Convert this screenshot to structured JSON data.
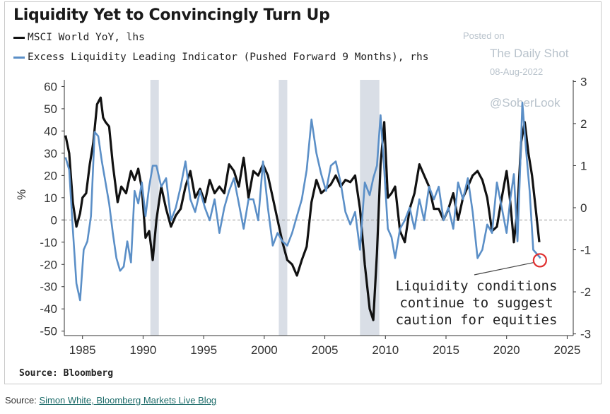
{
  "title": "Liquidity Yet to Convincingly Turn Up",
  "watermark": {
    "posted_on": "Posted on",
    "site": "The Daily Shot",
    "date": "08-Aug-2022",
    "handle": "@SoberLook"
  },
  "chart_source": "Source: Bloomberg",
  "page_source": {
    "prefix": "Source:",
    "link_text": "Simon White, Bloomberg Markets Live Blog"
  },
  "colors": {
    "msci": "#111111",
    "liquidity": "#5b8fc7",
    "recession": "#d9dee6",
    "zero_line": "#999999",
    "marker": "#e03030"
  },
  "chart_data": {
    "type": "line",
    "ylabel": "%",
    "grid": false,
    "legend_placement": "top-left",
    "x_ticks": [
      "1985",
      "1990",
      "1995",
      "2000",
      "2005",
      "2010",
      "2015",
      "2020",
      "2025"
    ],
    "x_tick_values": [
      1985,
      1990,
      1995,
      2000,
      2005,
      2010,
      2015,
      2020,
      2025
    ],
    "xlim": [
      1983.5,
      2025.5
    ],
    "left_axis": {
      "ylim": [
        -52,
        63
      ],
      "ticks": [
        "60",
        "50",
        "40",
        "30",
        "20",
        "10",
        "0",
        "-10",
        "-20",
        "-30",
        "-40",
        "-50"
      ],
      "tick_values": [
        60,
        50,
        40,
        30,
        20,
        10,
        0,
        -10,
        -20,
        -30,
        -40,
        -50
      ]
    },
    "right_axis": {
      "ylim": [
        -3.04,
        3.04
      ],
      "ticks": [
        "3",
        "2",
        "1",
        "0",
        "-1",
        "-2",
        "-3"
      ],
      "tick_values": [
        3,
        2,
        1,
        0,
        -1,
        -2,
        -3
      ]
    },
    "recession_bands": [
      [
        1990.6,
        1991.3
      ],
      [
        2001.2,
        2001.9
      ],
      [
        2007.9,
        2009.5
      ]
    ],
    "annotation": {
      "lines": [
        "Liquidity conditions",
        "continue to suggest",
        "caution for equities"
      ],
      "target": {
        "x": 2022.75,
        "y": -1.25,
        "axis": "right"
      }
    },
    "series": [
      {
        "name": "MSCI World YoY, lhs",
        "axis": "left",
        "x": [
          1983.6,
          1983.9,
          1984.2,
          1984.5,
          1984.8,
          1985.0,
          1985.3,
          1985.6,
          1985.9,
          1986.2,
          1986.5,
          1986.7,
          1986.9,
          1987.2,
          1987.5,
          1987.9,
          1988.2,
          1988.6,
          1989.0,
          1989.3,
          1989.6,
          1989.9,
          1990.2,
          1990.5,
          1990.8,
          1991.1,
          1991.5,
          1991.9,
          1992.3,
          1992.7,
          1993.1,
          1993.5,
          1993.9,
          1994.3,
          1994.7,
          1995.1,
          1995.5,
          1995.9,
          1996.3,
          1996.7,
          1997.1,
          1997.5,
          1997.9,
          1998.3,
          1998.7,
          1999.1,
          1999.5,
          1999.9,
          2000.3,
          2000.7,
          2001.1,
          2001.5,
          2001.9,
          2002.3,
          2002.7,
          2003.1,
          2003.5,
          2003.9,
          2004.3,
          2004.7,
          2005.1,
          2005.5,
          2005.9,
          2006.3,
          2006.7,
          2007.1,
          2007.5,
          2007.9,
          2008.3,
          2008.7,
          2009.0,
          2009.3,
          2009.6,
          2009.9,
          2010.2,
          2010.5,
          2010.8,
          2011.2,
          2011.6,
          2012.0,
          2012.4,
          2012.8,
          2013.2,
          2013.6,
          2014.0,
          2014.4,
          2014.8,
          2015.2,
          2015.6,
          2016.0,
          2016.4,
          2016.8,
          2017.2,
          2017.6,
          2018.0,
          2018.4,
          2018.8,
          2019.2,
          2019.6,
          2020.0,
          2020.3,
          2020.6,
          2020.9,
          2021.2,
          2021.5,
          2021.8,
          2022.1,
          2022.4,
          2022.7
        ],
        "y": [
          38,
          30,
          8,
          -3,
          3,
          10,
          12,
          25,
          35,
          52,
          55,
          46,
          44,
          42,
          25,
          8,
          15,
          12,
          22,
          18,
          23,
          14,
          -8,
          -5,
          -18,
          0,
          15,
          5,
          -3,
          2,
          5,
          15,
          22,
          10,
          14,
          8,
          18,
          12,
          15,
          12,
          25,
          22,
          15,
          28,
          10,
          22,
          20,
          25,
          20,
          10,
          0,
          -10,
          -18,
          -20,
          -25,
          -18,
          -12,
          8,
          18,
          12,
          14,
          16,
          20,
          15,
          18,
          17,
          20,
          5,
          -20,
          -40,
          -45,
          -15,
          25,
          44,
          10,
          12,
          15,
          -5,
          -10,
          5,
          12,
          25,
          20,
          15,
          5,
          5,
          0,
          5,
          12,
          0,
          10,
          15,
          20,
          22,
          18,
          10,
          -5,
          -3,
          10,
          22,
          8,
          -10,
          5,
          35,
          44,
          30,
          20,
          5,
          -10
        ]
      },
      {
        "name": "Excess Liquidity Leading Indicator (Pushed Forward 9 Months), rhs",
        "axis": "right",
        "x": [
          1983.6,
          1983.9,
          1984.2,
          1984.5,
          1984.8,
          1985.1,
          1985.4,
          1985.7,
          1986.0,
          1986.3,
          1986.6,
          1986.9,
          1987.2,
          1987.5,
          1987.8,
          1988.1,
          1988.4,
          1988.7,
          1989.0,
          1989.3,
          1989.6,
          1989.9,
          1990.2,
          1990.5,
          1990.8,
          1991.1,
          1991.5,
          1991.9,
          1992.3,
          1992.7,
          1993.1,
          1993.5,
          1993.9,
          1994.3,
          1994.7,
          1995.1,
          1995.5,
          1995.9,
          1996.3,
          1996.7,
          1997.1,
          1997.5,
          1997.9,
          1998.3,
          1998.7,
          1999.1,
          1999.5,
          1999.9,
          2000.3,
          2000.7,
          2001.1,
          2001.5,
          2001.9,
          2002.3,
          2002.7,
          2003.1,
          2003.5,
          2003.9,
          2004.3,
          2004.7,
          2005.1,
          2005.5,
          2005.9,
          2006.3,
          2006.7,
          2007.1,
          2007.5,
          2007.9,
          2008.3,
          2008.7,
          2009.0,
          2009.3,
          2009.6,
          2009.9,
          2010.2,
          2010.5,
          2010.8,
          2011.2,
          2011.6,
          2012.0,
          2012.4,
          2012.8,
          2013.2,
          2013.6,
          2014.0,
          2014.4,
          2014.8,
          2015.2,
          2015.6,
          2016.0,
          2016.4,
          2016.8,
          2017.2,
          2017.6,
          2018.0,
          2018.4,
          2018.8,
          2019.2,
          2019.6,
          2020.0,
          2020.3,
          2020.6,
          2020.9,
          2021.1,
          2021.3,
          2021.6,
          2021.9,
          2022.2,
          2022.5,
          2022.8
        ],
        "y": [
          1.2,
          0.9,
          -0.5,
          -1.8,
          -2.2,
          -1.0,
          -0.8,
          -0.2,
          1.8,
          1.7,
          1.1,
          0.6,
          0.1,
          -0.6,
          -1.2,
          -1.5,
          -1.4,
          -0.8,
          -1.3,
          0.4,
          0.1,
          0.6,
          -0.2,
          0.5,
          1.0,
          1.0,
          0.5,
          0.7,
          -0.3,
          0.0,
          0.5,
          1.1,
          0.2,
          -0.1,
          0.4,
          0.0,
          -0.3,
          0.2,
          -0.6,
          0.0,
          0.4,
          0.7,
          0.1,
          -0.5,
          0.2,
          0.2,
          -0.3,
          1.1,
          0.0,
          -0.9,
          -0.6,
          -0.8,
          -0.9,
          -0.6,
          -0.2,
          0.2,
          0.9,
          2.1,
          1.3,
          0.8,
          0.4,
          1.0,
          1.1,
          0.6,
          -0.1,
          -0.4,
          -0.1,
          -1.0,
          0.6,
          0.3,
          0.7,
          1.0,
          2.2,
          0.9,
          -0.5,
          -0.7,
          -1.2,
          -0.5,
          -0.3,
          0.0,
          -0.5,
          0.2,
          -0.3,
          0.5,
          0.2,
          0.5,
          -0.3,
          0.0,
          -0.5,
          0.6,
          0.2,
          0.7,
          -0.1,
          -1.2,
          -1.0,
          -0.4,
          -0.6,
          0.6,
          0.0,
          -0.6,
          0.2,
          0.8,
          -0.8,
          0.8,
          2.5,
          1.4,
          0.4,
          -1.0,
          -1.1,
          -1.2
        ]
      }
    ]
  }
}
